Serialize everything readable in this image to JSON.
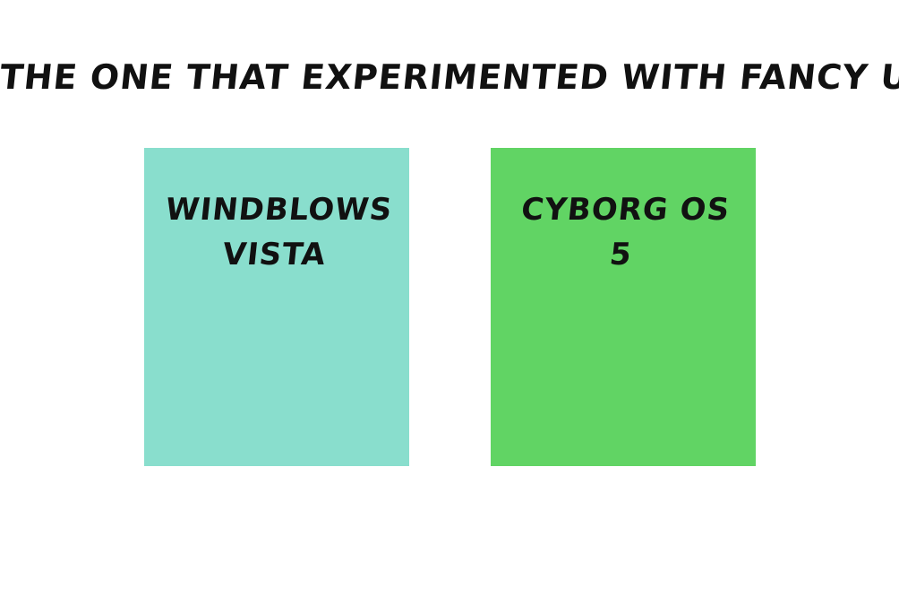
{
  "title": "THE ONE THAT EXPERIMENTED WITH FANCY UI",
  "cards": [
    {
      "line1": "WINDBLOWS",
      "line2": "VISTA",
      "color": "#89DECD"
    },
    {
      "line1": "CYBORG OS",
      "line2": "5",
      "color": "#61D464"
    }
  ]
}
